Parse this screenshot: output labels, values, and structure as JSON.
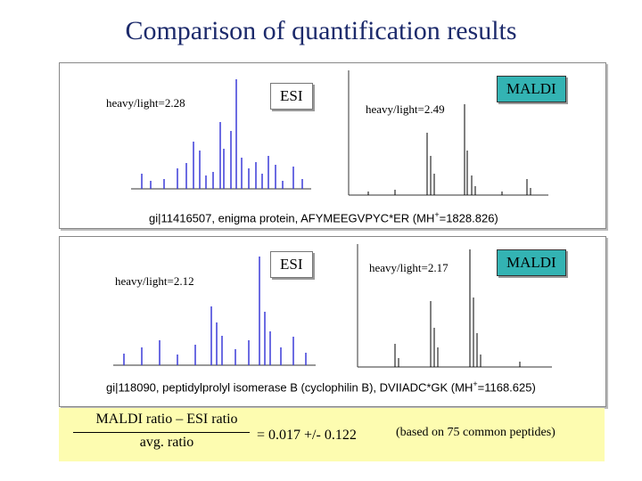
{
  "title": "Comparison of quantification results",
  "panel1": {
    "esi_ratio": "heavy/light=2.28",
    "esi_tag": "ESI",
    "maldi_ratio": "heavy/light=2.49",
    "maldi_tag": "MALDI",
    "caption_prefix": "gi|11416507, enigma protein, AFYMEEGVPYC*ER (MH",
    "caption_sup": "+",
    "caption_suffix": "=1828.826)"
  },
  "panel2": {
    "esi_ratio": "heavy/light=2.12",
    "esi_tag": "ESI",
    "maldi_ratio": "heavy/light=2.17",
    "maldi_tag": "MALDI",
    "caption_prefix": "gi|118090, peptidylprolyl isomerase B (cyclophilin B), DVIIADC*GK (MH",
    "caption_sup": "+",
    "caption_suffix": "=1168.625)"
  },
  "formula": {
    "numerator": "MALDI ratio – ESI ratio",
    "denominator": "avg. ratio",
    "result": "=  0.017 +/- 0.122",
    "note": "(based on 75 common peptides)"
  },
  "colors": {
    "title": "#1c2a6b",
    "spectrum": "#3a3ad8",
    "maldi_tag": "#33b3b3",
    "formula_bg": "#fdfcb0"
  }
}
